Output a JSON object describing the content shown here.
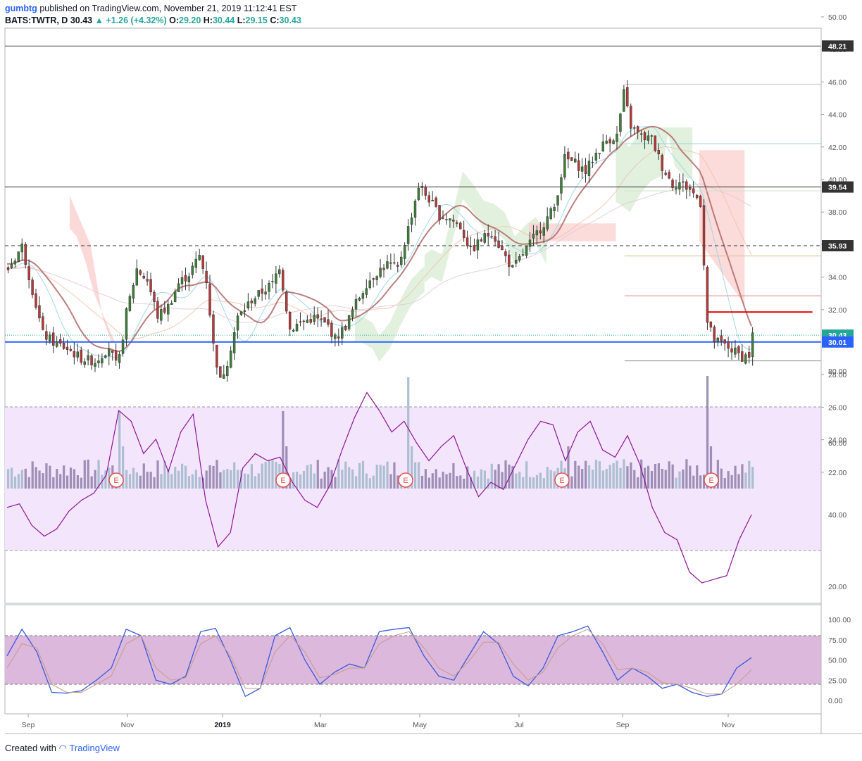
{
  "header": {
    "user": "gumbtg",
    "published": "published on TradingView.com, November 21, 2019 11:12:41 EST",
    "symbol": "BATS:TWTR, D",
    "last": "30.43",
    "change": "+1.26 (+4.32%)",
    "open_label": "O:",
    "open": "29.20",
    "high_label": "H:",
    "high": "30.44",
    "low_label": "L:",
    "low": "29.15",
    "close_label": "C:",
    "close": "30.43"
  },
  "footer": {
    "created_with": "Created with",
    "brand": "TradingView"
  },
  "colors": {
    "up": "#26a69a",
    "candle_up": "#3e7d3a",
    "candle_down": "#b13a3a",
    "support_line": "#2962ff",
    "resistance": "#e00000",
    "rsi_band": "#f3e5fb",
    "stoch_band": "#dcb8dc",
    "cloud_red": "#fbcfcf",
    "cloud_green": "#d8ecd3"
  },
  "chart_data": [
    {
      "type": "candlestick",
      "title": "BATS:TWTR, D",
      "ylim": [
        22,
        50
      ],
      "y_ticks": [
        "50.00",
        "48.00",
        "46.00",
        "44.00",
        "42.00",
        "40.00",
        "38.00",
        "36.00",
        "34.00",
        "32.00",
        "30.00",
        "28.00",
        "26.00",
        "24.00",
        "22.00"
      ],
      "x_labels": [
        "Sep",
        "Nov",
        "2019",
        "Mar",
        "May",
        "Jul",
        "Sep",
        "Nov"
      ],
      "price_labels": [
        {
          "value": "48.21",
          "role": "horizontal-line"
        },
        {
          "value": "39.54",
          "role": "horizontal-line"
        },
        {
          "value": "35.93",
          "role": "dashed-line"
        },
        {
          "value": "30.43",
          "role": "last-price"
        },
        {
          "value": "30.01",
          "role": "support-line"
        }
      ],
      "earnings_markers": [
        "E",
        "E",
        "E",
        "E",
        "E"
      ],
      "close_series_approx": [
        [
          0,
          34.5
        ],
        [
          8,
          35.9
        ],
        [
          14,
          33.2
        ],
        [
          20,
          30.5
        ],
        [
          26,
          30.0
        ],
        [
          34,
          29.6
        ],
        [
          42,
          29.0
        ],
        [
          50,
          28.8
        ],
        [
          58,
          29.7
        ],
        [
          63,
          28.3
        ],
        [
          68,
          31.8
        ],
        [
          74,
          34.5
        ],
        [
          80,
          33.8
        ],
        [
          86,
          31.6
        ],
        [
          92,
          32.2
        ],
        [
          98,
          33.6
        ],
        [
          104,
          34.2
        ],
        [
          110,
          35.3
        ],
        [
          114,
          33.8
        ],
        [
          118,
          29.8
        ],
        [
          122,
          27.6
        ],
        [
          126,
          28.8
        ],
        [
          132,
          31.5
        ],
        [
          140,
          32.6
        ],
        [
          146,
          33.1
        ],
        [
          152,
          33.6
        ],
        [
          156,
          34.7
        ],
        [
          162,
          30.8
        ],
        [
          168,
          31.2
        ],
        [
          176,
          31.5
        ],
        [
          184,
          31.0
        ],
        [
          188,
          30.2
        ],
        [
          194,
          31.0
        ],
        [
          200,
          32.4
        ],
        [
          206,
          33.6
        ],
        [
          212,
          34.3
        ],
        [
          218,
          34.8
        ],
        [
          224,
          34.5
        ],
        [
          230,
          37.0
        ],
        [
          236,
          39.6
        ],
        [
          242,
          38.8
        ],
        [
          248,
          37.8
        ],
        [
          254,
          37.6
        ],
        [
          260,
          37.1
        ],
        [
          266,
          35.6
        ],
        [
          272,
          36.3
        ],
        [
          278,
          36.8
        ],
        [
          284,
          35.6
        ],
        [
          290,
          34.5
        ],
        [
          296,
          35.4
        ],
        [
          302,
          36.4
        ],
        [
          308,
          37.3
        ],
        [
          314,
          38.3
        ],
        [
          320,
          41.3
        ],
        [
          326,
          41.0
        ],
        [
          332,
          40.5
        ],
        [
          338,
          41.6
        ],
        [
          344,
          42.4
        ],
        [
          350,
          42.7
        ],
        [
          354,
          45.3
        ],
        [
          358,
          43.3
        ],
        [
          364,
          42.6
        ],
        [
          370,
          42.5
        ],
        [
          376,
          40.8
        ],
        [
          382,
          39.7
        ],
        [
          386,
          39.8
        ],
        [
          392,
          39.4
        ],
        [
          398,
          38.6
        ],
        [
          402,
          31.2
        ],
        [
          406,
          30.1
        ],
        [
          412,
          29.8
        ],
        [
          418,
          29.4
        ],
        [
          422,
          29.1
        ],
        [
          426,
          29.2
        ],
        [
          428,
          30.43
        ]
      ]
    },
    {
      "type": "line",
      "title": "RSI",
      "ylim": [
        0,
        100
      ],
      "y_ticks": [
        "80.00",
        "60.00",
        "40.00",
        "20.00"
      ],
      "band": [
        30,
        70
      ],
      "values_approx": [
        42,
        43,
        37,
        34,
        36,
        41,
        44,
        46,
        51,
        69,
        66,
        57,
        61,
        52,
        63,
        68,
        44,
        31,
        35,
        53,
        57,
        55,
        56,
        49,
        44,
        42,
        48,
        58,
        67,
        74,
        69,
        63,
        66,
        60,
        55,
        59,
        62,
        53,
        45,
        49,
        47,
        54,
        61,
        66,
        65,
        55,
        63,
        66,
        58,
        56,
        62,
        54,
        42,
        35,
        33,
        24,
        21,
        22,
        23,
        33,
        40
      ]
    },
    {
      "type": "line",
      "title": "Stochastic",
      "ylim": [
        -10,
        105
      ],
      "y_ticks": [
        "100.00",
        "75.00",
        "50.00",
        "25.00",
        "0.00"
      ],
      "band": [
        20,
        80
      ],
      "series": [
        {
          "values_approx": [
            55,
            88,
            60,
            10,
            9,
            12,
            25,
            40,
            88,
            80,
            25,
            20,
            30,
            85,
            89,
            50,
            5,
            15,
            80,
            90,
            50,
            20,
            35,
            45,
            40,
            85,
            88,
            90,
            55,
            30,
            25,
            55,
            85,
            70,
            30,
            18,
            40,
            80,
            85,
            92,
            60,
            25,
            40,
            30,
            15,
            20,
            10,
            5,
            8,
            40,
            53
          ]
        },
        {
          "values_approx": [
            40,
            70,
            65,
            20,
            10,
            10,
            20,
            30,
            70,
            80,
            40,
            25,
            28,
            70,
            80,
            55,
            15,
            15,
            60,
            80,
            60,
            28,
            32,
            40,
            40,
            70,
            80,
            85,
            65,
            40,
            30,
            48,
            72,
            72,
            45,
            25,
            35,
            65,
            80,
            88,
            70,
            38,
            40,
            35,
            22,
            20,
            15,
            8,
            8,
            20,
            38
          ]
        }
      ]
    }
  ]
}
